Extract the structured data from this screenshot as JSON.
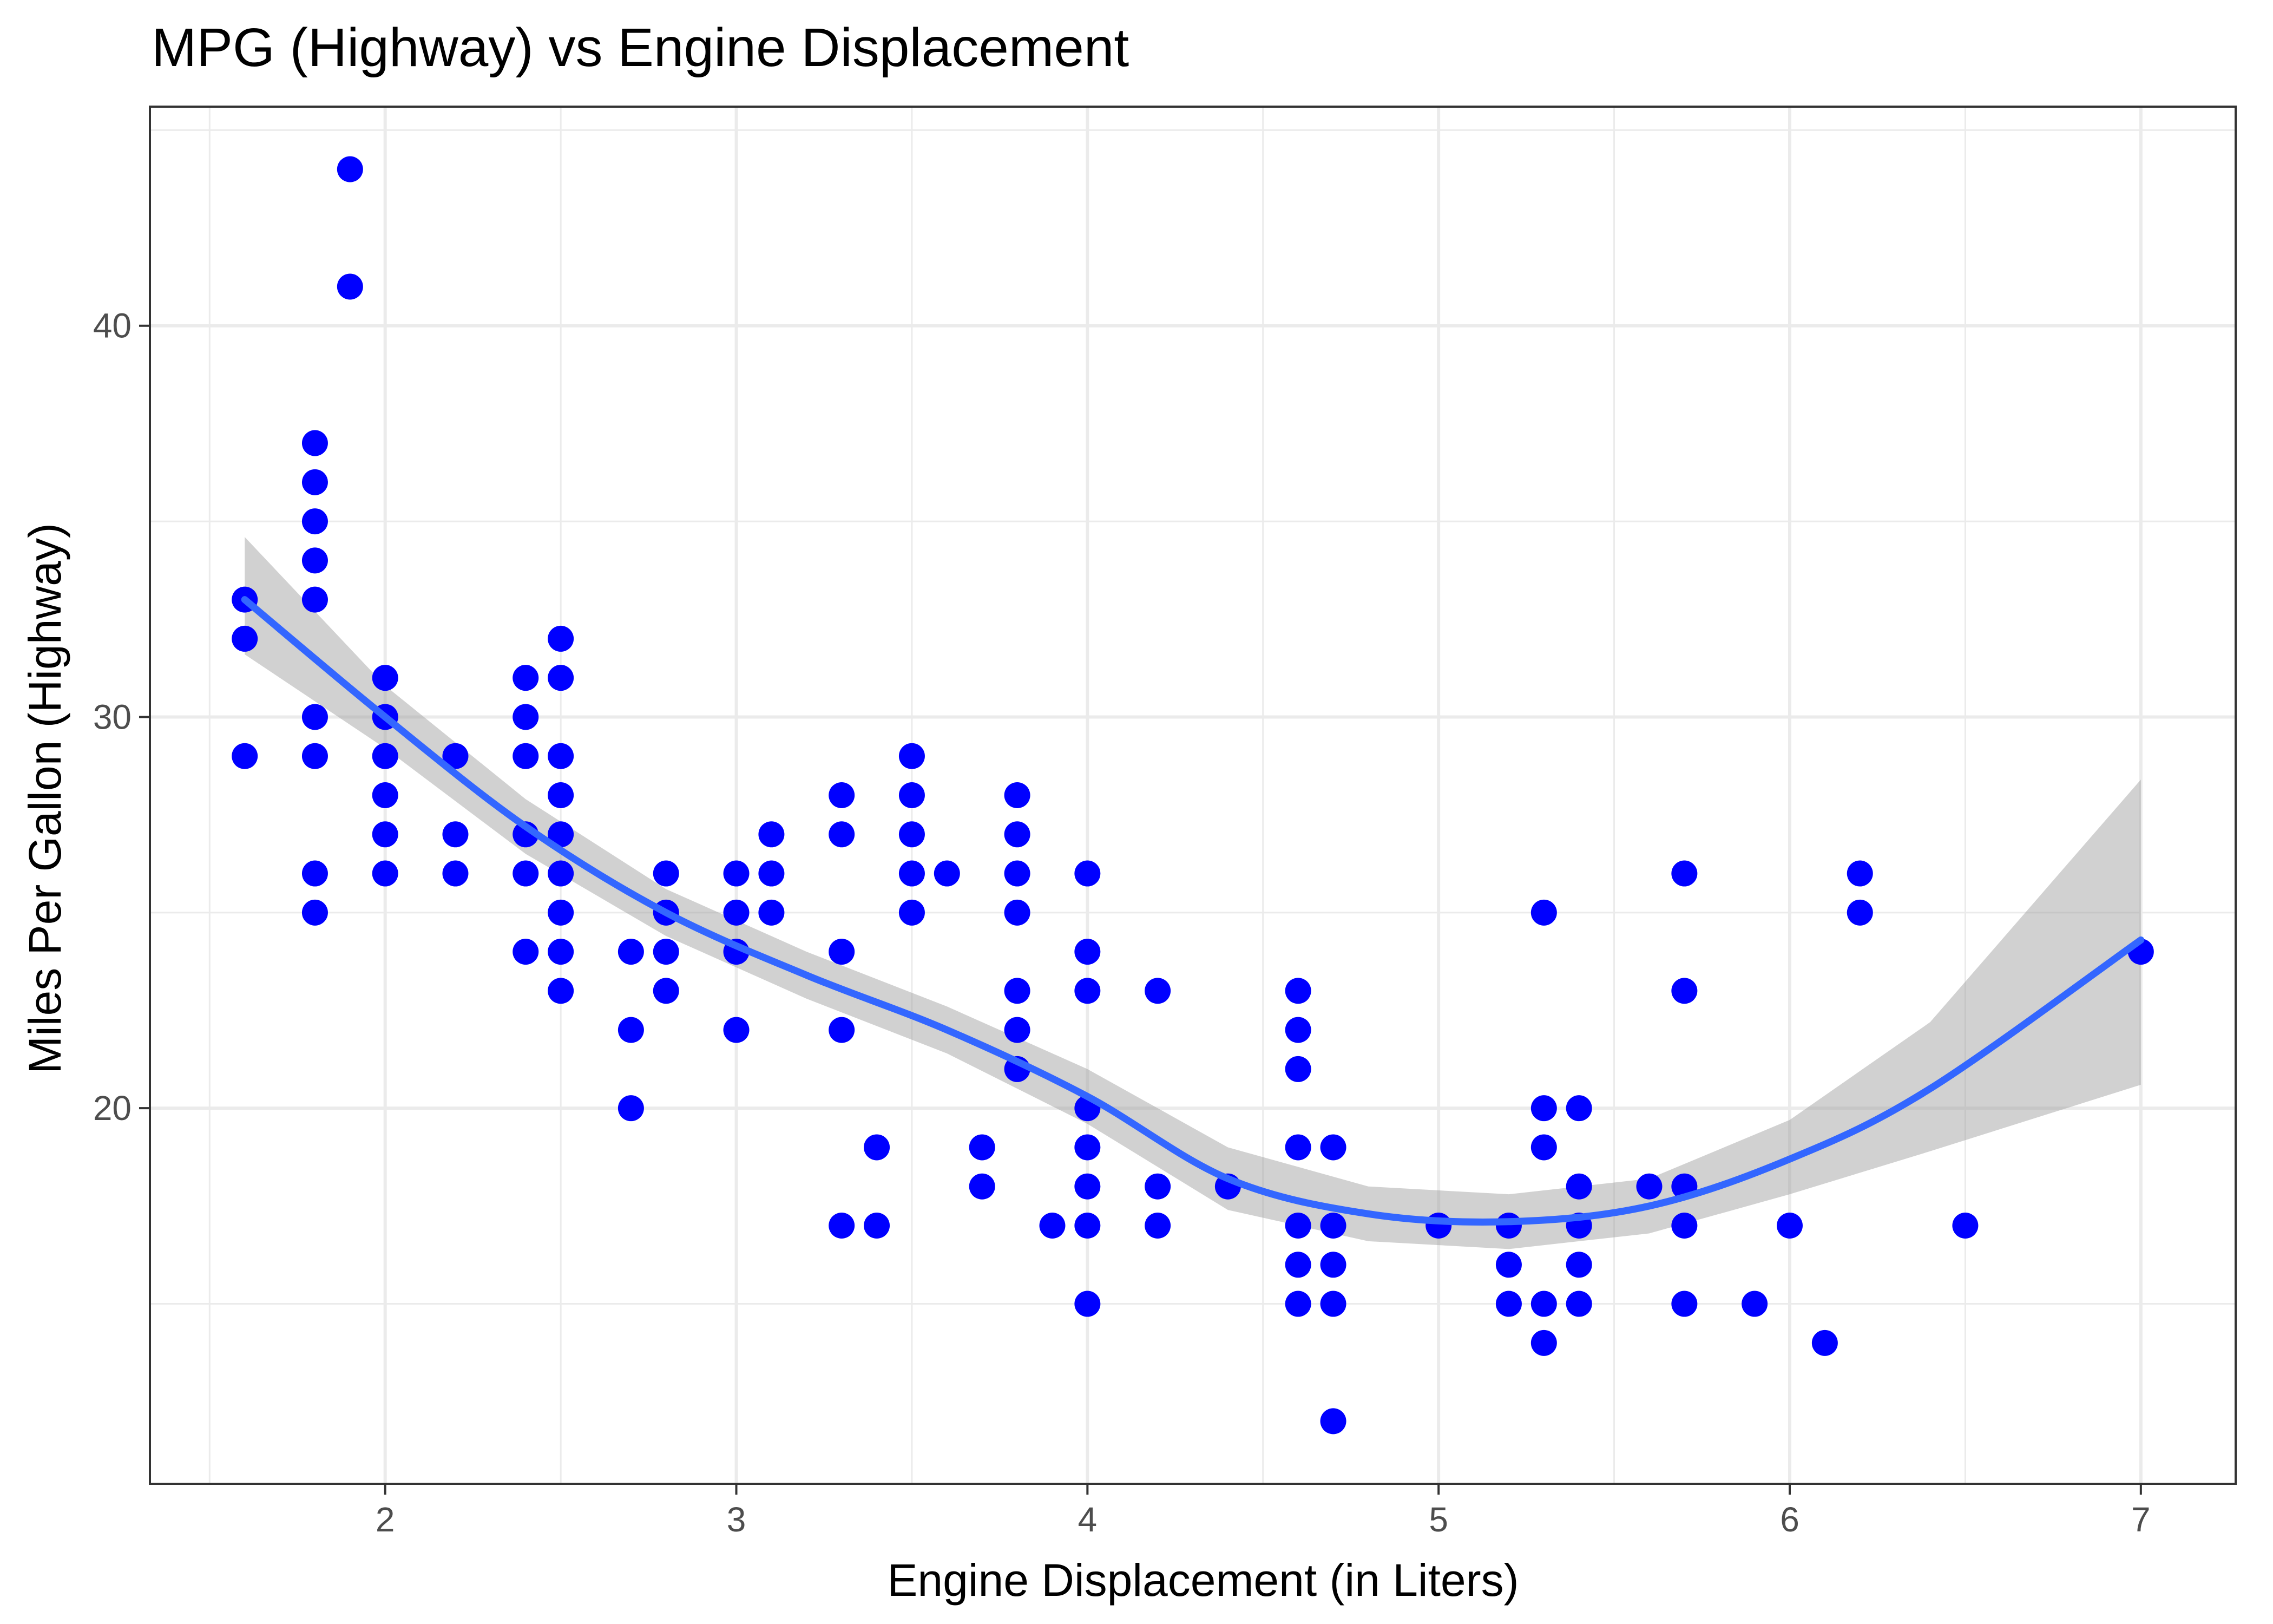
{
  "chart_data": {
    "type": "scatter",
    "title": "MPG (Highway) vs Engine Displacement",
    "xlabel": "Engine Displacement (in Liters)",
    "ylabel": "Miles Per Gallon (Highway)",
    "xlim": [
      1.33,
      7.27
    ],
    "ylim": [
      10.4,
      45.6
    ],
    "xticks": [
      2,
      3,
      4,
      5,
      6,
      7
    ],
    "yticks": [
      20,
      30,
      40
    ],
    "xtick_labels": [
      "2",
      "3",
      "4",
      "5",
      "6",
      "7"
    ],
    "ytick_labels": [
      "20",
      "30",
      "40"
    ],
    "grid": true,
    "point_color": "#0000ff",
    "smooth_color": "#3366ff",
    "band_color": "#999999",
    "points": [
      [
        1.6,
        33
      ],
      [
        1.6,
        32
      ],
      [
        1.6,
        29
      ],
      [
        1.8,
        37
      ],
      [
        1.8,
        36
      ],
      [
        1.8,
        35
      ],
      [
        1.8,
        34
      ],
      [
        1.8,
        33
      ],
      [
        1.8,
        30
      ],
      [
        1.8,
        29
      ],
      [
        1.8,
        26
      ],
      [
        1.8,
        25
      ],
      [
        1.9,
        44
      ],
      [
        1.9,
        41
      ],
      [
        2.0,
        31
      ],
      [
        2.0,
        30
      ],
      [
        2.0,
        29
      ],
      [
        2.0,
        28
      ],
      [
        2.0,
        27
      ],
      [
        2.0,
        26
      ],
      [
        2.2,
        29
      ],
      [
        2.2,
        27
      ],
      [
        2.2,
        26
      ],
      [
        2.4,
        31
      ],
      [
        2.4,
        30
      ],
      [
        2.4,
        29
      ],
      [
        2.4,
        27
      ],
      [
        2.4,
        26
      ],
      [
        2.4,
        24
      ],
      [
        2.5,
        32
      ],
      [
        2.5,
        31
      ],
      [
        2.5,
        29
      ],
      [
        2.5,
        28
      ],
      [
        2.5,
        27
      ],
      [
        2.5,
        26
      ],
      [
        2.5,
        25
      ],
      [
        2.5,
        24
      ],
      [
        2.5,
        23
      ],
      [
        2.7,
        24
      ],
      [
        2.7,
        22
      ],
      [
        2.7,
        20
      ],
      [
        2.8,
        26
      ],
      [
        2.8,
        25
      ],
      [
        2.8,
        24
      ],
      [
        2.8,
        23
      ],
      [
        3.0,
        26
      ],
      [
        3.0,
        25
      ],
      [
        3.0,
        24
      ],
      [
        3.0,
        22
      ],
      [
        3.1,
        27
      ],
      [
        3.1,
        26
      ],
      [
        3.1,
        25
      ],
      [
        3.3,
        28
      ],
      [
        3.3,
        27
      ],
      [
        3.3,
        24
      ],
      [
        3.3,
        22
      ],
      [
        3.3,
        17
      ],
      [
        3.4,
        19
      ],
      [
        3.4,
        17
      ],
      [
        3.5,
        29
      ],
      [
        3.5,
        28
      ],
      [
        3.5,
        27
      ],
      [
        3.5,
        26
      ],
      [
        3.5,
        25
      ],
      [
        3.6,
        26
      ],
      [
        3.7,
        19
      ],
      [
        3.7,
        18
      ],
      [
        3.8,
        28
      ],
      [
        3.8,
        27
      ],
      [
        3.8,
        26
      ],
      [
        3.8,
        25
      ],
      [
        3.8,
        23
      ],
      [
        3.8,
        22
      ],
      [
        3.8,
        21
      ],
      [
        3.9,
        17
      ],
      [
        4.0,
        26
      ],
      [
        4.0,
        24
      ],
      [
        4.0,
        23
      ],
      [
        4.0,
        20
      ],
      [
        4.0,
        19
      ],
      [
        4.0,
        18
      ],
      [
        4.0,
        17
      ],
      [
        4.0,
        15
      ],
      [
        4.2,
        23
      ],
      [
        4.2,
        18
      ],
      [
        4.2,
        17
      ],
      [
        4.4,
        18
      ],
      [
        4.6,
        23
      ],
      [
        4.6,
        22
      ],
      [
        4.6,
        21
      ],
      [
        4.6,
        19
      ],
      [
        4.6,
        17
      ],
      [
        4.6,
        16
      ],
      [
        4.6,
        15
      ],
      [
        4.7,
        19
      ],
      [
        4.7,
        17
      ],
      [
        4.7,
        16
      ],
      [
        4.7,
        15
      ],
      [
        4.7,
        12
      ],
      [
        5.0,
        17
      ],
      [
        5.2,
        17
      ],
      [
        5.2,
        16
      ],
      [
        5.2,
        15
      ],
      [
        5.3,
        25
      ],
      [
        5.3,
        20
      ],
      [
        5.3,
        19
      ],
      [
        5.3,
        15
      ],
      [
        5.3,
        14
      ],
      [
        5.4,
        20
      ],
      [
        5.4,
        18
      ],
      [
        5.4,
        17
      ],
      [
        5.4,
        16
      ],
      [
        5.4,
        15
      ],
      [
        5.6,
        18
      ],
      [
        5.7,
        26
      ],
      [
        5.7,
        23
      ],
      [
        5.7,
        18
      ],
      [
        5.7,
        17
      ],
      [
        5.7,
        15
      ],
      [
        5.9,
        15
      ],
      [
        6.0,
        17
      ],
      [
        6.1,
        14
      ],
      [
        6.2,
        26
      ],
      [
        6.2,
        25
      ],
      [
        6.5,
        17
      ],
      [
        7.0,
        24
      ]
    ],
    "smooth": {
      "x": [
        1.6,
        2.0,
        2.4,
        2.8,
        3.2,
        3.6,
        4.0,
        4.4,
        4.8,
        5.2,
        5.6,
        6.0,
        6.4,
        7.0
      ],
      "y": [
        33.0,
        30.0,
        27.2,
        25.0,
        23.4,
        22.0,
        20.3,
        18.2,
        17.3,
        17.1,
        17.5,
        18.7,
        20.5,
        24.3
      ],
      "ymin": [
        31.6,
        29.2,
        26.5,
        24.4,
        22.8,
        21.4,
        19.6,
        17.4,
        16.6,
        16.4,
        16.8,
        17.8,
        18.9,
        20.6
      ],
      "ymax": [
        34.6,
        30.8,
        27.9,
        25.6,
        24.0,
        22.6,
        21.0,
        19.0,
        18.0,
        17.8,
        18.2,
        19.7,
        22.2,
        28.4
      ]
    }
  }
}
